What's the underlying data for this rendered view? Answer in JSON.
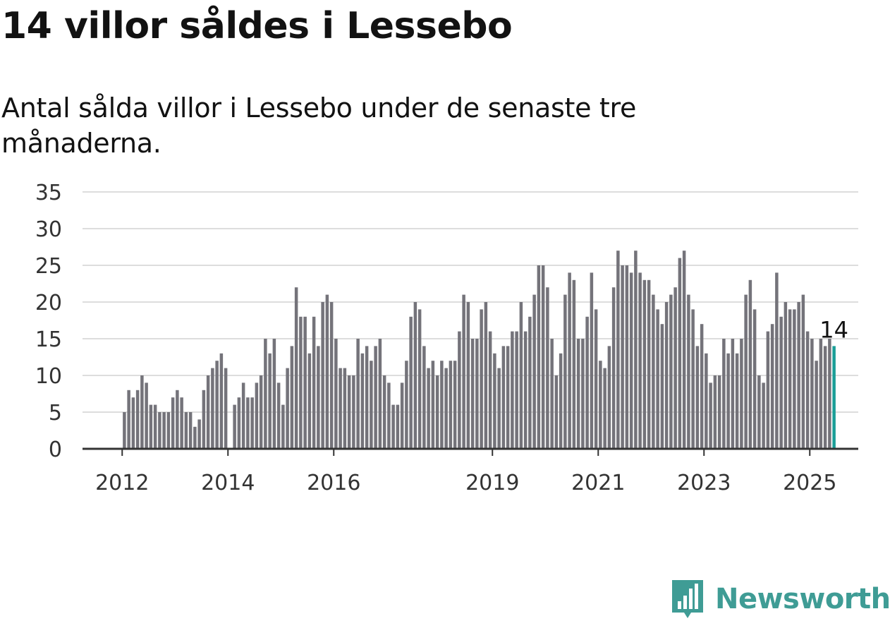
{
  "header": {
    "title": "14 villor såldes i Lessebo",
    "subtitle": "Antal sålda villor i Lessebo under de senaste tre månaderna."
  },
  "brand": {
    "name": "Newsworthy",
    "icon": "newsworthy-logo-icon",
    "color": "#3f9c95"
  },
  "colors": {
    "bar": "#74737a",
    "highlight": "#1a9e97",
    "grid": "#dddddd",
    "axis": "#333333"
  },
  "chart_data": {
    "type": "bar",
    "title": "14 villor såldes i Lessebo",
    "subtitle": "Antal sålda villor i Lessebo under de senaste tre månaderna.",
    "xlabel": "",
    "ylabel": "",
    "ylim": [
      0,
      35
    ],
    "yticks": [
      0,
      5,
      10,
      15,
      20,
      25,
      30,
      35
    ],
    "xticks": [
      "2012",
      "2014",
      "2016",
      "2019",
      "2021",
      "2023",
      "2025"
    ],
    "x_range": [
      "2011-04",
      "2025-12"
    ],
    "grid": true,
    "legend": "none",
    "start_month": "2012-01",
    "interval": "month",
    "values": [
      5,
      8,
      7,
      8,
      10,
      9,
      6,
      6,
      5,
      5,
      5,
      7,
      8,
      7,
      5,
      5,
      3,
      4,
      8,
      10,
      11,
      12,
      13,
      11,
      0,
      6,
      7,
      9,
      7,
      7,
      9,
      10,
      15,
      13,
      15,
      9,
      6,
      11,
      14,
      22,
      18,
      18,
      13,
      18,
      14,
      20,
      21,
      20,
      15,
      11,
      11,
      10,
      10,
      15,
      13,
      14,
      12,
      14,
      15,
      10,
      9,
      6,
      6,
      9,
      12,
      18,
      20,
      19,
      14,
      11,
      12,
      10,
      12,
      11,
      12,
      12,
      16,
      21,
      20,
      15,
      15,
      19,
      20,
      16,
      13,
      11,
      14,
      14,
      16,
      16,
      20,
      16,
      18,
      21,
      25,
      25,
      22,
      15,
      10,
      13,
      21,
      24,
      23,
      15,
      15,
      18,
      24,
      19,
      12,
      11,
      14,
      22,
      27,
      25,
      25,
      24,
      27,
      24,
      23,
      23,
      21,
      19,
      17,
      20,
      21,
      22,
      26,
      27,
      21,
      19,
      14,
      17,
      13,
      9,
      10,
      10,
      15,
      13,
      15,
      13,
      15,
      21,
      23,
      19,
      10,
      9,
      16,
      17,
      24,
      18,
      20,
      19,
      19,
      20,
      21,
      16,
      15,
      12,
      15,
      14,
      15,
      14
    ],
    "highlight_last": true,
    "last_value_label": "14"
  }
}
